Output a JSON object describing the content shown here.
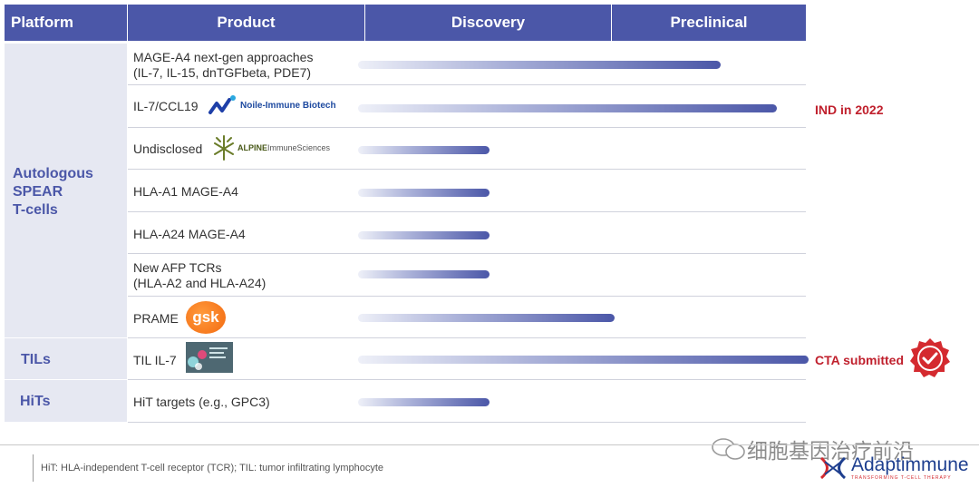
{
  "header": {
    "platform": "Platform",
    "product": "Product",
    "discovery": "Discovery",
    "preclinical": "Preclinical"
  },
  "platforms": {
    "autologous": [
      "Autologous",
      "SPEAR",
      "T-cells"
    ],
    "tils": "TILs",
    "hits": "HiTs"
  },
  "rows": [
    {
      "label_lines": [
        "MAGE-A4 next-gen  approaches",
        "(IL-7, IL-15, dnTGFbeta, PDE7)"
      ],
      "progress": 0.58,
      "note": ""
    },
    {
      "label_lines": [
        "IL-7/CCL19"
      ],
      "partner": "Noile-Immune Biotech",
      "progress": 0.67,
      "note": "IND in 2022"
    },
    {
      "label_lines": [
        "Undisclosed"
      ],
      "partner_main": "ALPINE",
      "partner_sub": "ImmuneSciences",
      "progress": 0.21,
      "note": ""
    },
    {
      "label_lines": [
        "HLA-A1 MAGE-A4"
      ],
      "progress": 0.21,
      "note": ""
    },
    {
      "label_lines": [
        "HLA-A24 MAGE-A4"
      ],
      "progress": 0.21,
      "note": ""
    },
    {
      "label_lines": [
        "New AFP TCRs",
        "(HLA-A2 and HLA-A24)"
      ],
      "progress": 0.21,
      "note": ""
    },
    {
      "label_lines": [
        "PRAME"
      ],
      "partner": "gsk",
      "progress": 0.41,
      "note": ""
    },
    {
      "label_lines": [
        "TIL IL-7"
      ],
      "progress": 0.72,
      "note": "CTA submitted"
    },
    {
      "label_lines": [
        "HiT targets (e.g., GPC3)"
      ],
      "progress": 0.21,
      "note": ""
    }
  ],
  "footnote": "HiT: HLA-independent  T-cell receptor (TCR);  TIL:  tumor infiltrating lymphocyte",
  "watermark": "细胞基因治疗前沿",
  "brand": {
    "name": "Adaptimmune",
    "tagline": "TRANSFORMING T-CELL THERAPY"
  },
  "colors": {
    "header": "#4b57a8",
    "note": "#c0202d",
    "platform_bg": "#e6e8f2"
  }
}
